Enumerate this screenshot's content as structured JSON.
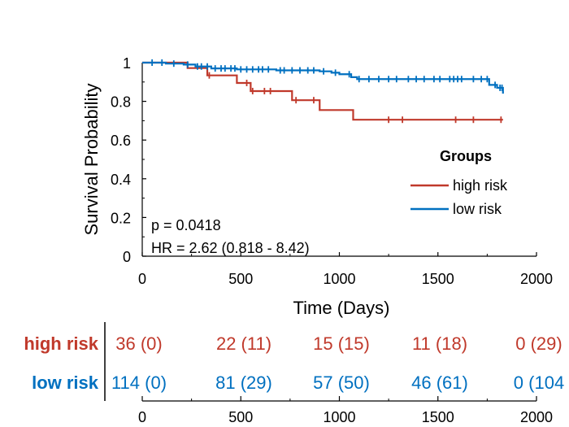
{
  "chart_data": {
    "type": "line",
    "subtype": "kaplan-meier",
    "xlabel": "Time (Days)",
    "ylabel": "Survival Probability",
    "xlim": [
      0,
      2000
    ],
    "ylim": [
      0,
      1
    ],
    "xticks": [
      0,
      500,
      1000,
      1500,
      2000
    ],
    "yticks": [
      0,
      0.2,
      0.4,
      0.6,
      0.8,
      1
    ],
    "ytick_labels": [
      "0",
      "0.2",
      "0.4",
      "0.6",
      "0.8",
      "1"
    ],
    "grid": false,
    "legend": {
      "title": "Groups",
      "placement": "center-right",
      "entries": [
        "high risk",
        "low risk"
      ]
    },
    "annotations": [
      "p = 0.0418",
      "HR = 2.62 (0.818 - 8.42)"
    ],
    "colors": {
      "high": "#c0392b",
      "low": "#0070c0",
      "axis": "#000000"
    },
    "series": [
      {
        "name": "high risk",
        "color": "#c0392b",
        "steps": [
          [
            0,
            1.0
          ],
          [
            230,
            0.972
          ],
          [
            330,
            0.934
          ],
          [
            480,
            0.895
          ],
          [
            550,
            0.853
          ],
          [
            760,
            0.806
          ],
          [
            900,
            0.755
          ],
          [
            1070,
            0.705
          ],
          [
            1830,
            0.705
          ]
        ],
        "censor": [
          340,
          530,
          560,
          620,
          650,
          780,
          870,
          1250,
          1320,
          1590,
          1680,
          1820
        ]
      },
      {
        "name": "low risk",
        "color": "#0070c0",
        "steps": [
          [
            0,
            1.0
          ],
          [
            120,
            0.995
          ],
          [
            210,
            0.99
          ],
          [
            270,
            0.98
          ],
          [
            350,
            0.97
          ],
          [
            480,
            0.965
          ],
          [
            680,
            0.96
          ],
          [
            900,
            0.955
          ],
          [
            960,
            0.948
          ],
          [
            1000,
            0.94
          ],
          [
            1060,
            0.925
          ],
          [
            1090,
            0.915
          ],
          [
            1760,
            0.885
          ],
          [
            1800,
            0.87
          ],
          [
            1830,
            0.84
          ]
        ],
        "censor": [
          50,
          100,
          160,
          230,
          280,
          300,
          330,
          370,
          400,
          420,
          450,
          470,
          500,
          530,
          560,
          590,
          610,
          640,
          700,
          720,
          760,
          800,
          840,
          870,
          920,
          980,
          1050,
          1100,
          1150,
          1200,
          1250,
          1290,
          1350,
          1390,
          1430,
          1480,
          1510,
          1560,
          1580,
          1600,
          1620,
          1680,
          1720,
          1750,
          1790,
          1815,
          1825
        ]
      }
    ],
    "risk_table": {
      "rows": [
        {
          "label": "high risk",
          "color": "#c0392b",
          "values": [
            "36 (0)",
            "22 (11)",
            "15 (15)",
            "11 (18)",
            "0 (29)"
          ]
        },
        {
          "label": "low risk",
          "color": "#0070c0",
          "values": [
            "114 (0)",
            "81 (29)",
            "57 (50)",
            "46 (61)",
            "0 (104"
          ]
        }
      ],
      "at_times": [
        0,
        500,
        1000,
        1500,
        2000
      ],
      "xticks": [
        0,
        500,
        1000,
        1500,
        2000
      ]
    }
  }
}
